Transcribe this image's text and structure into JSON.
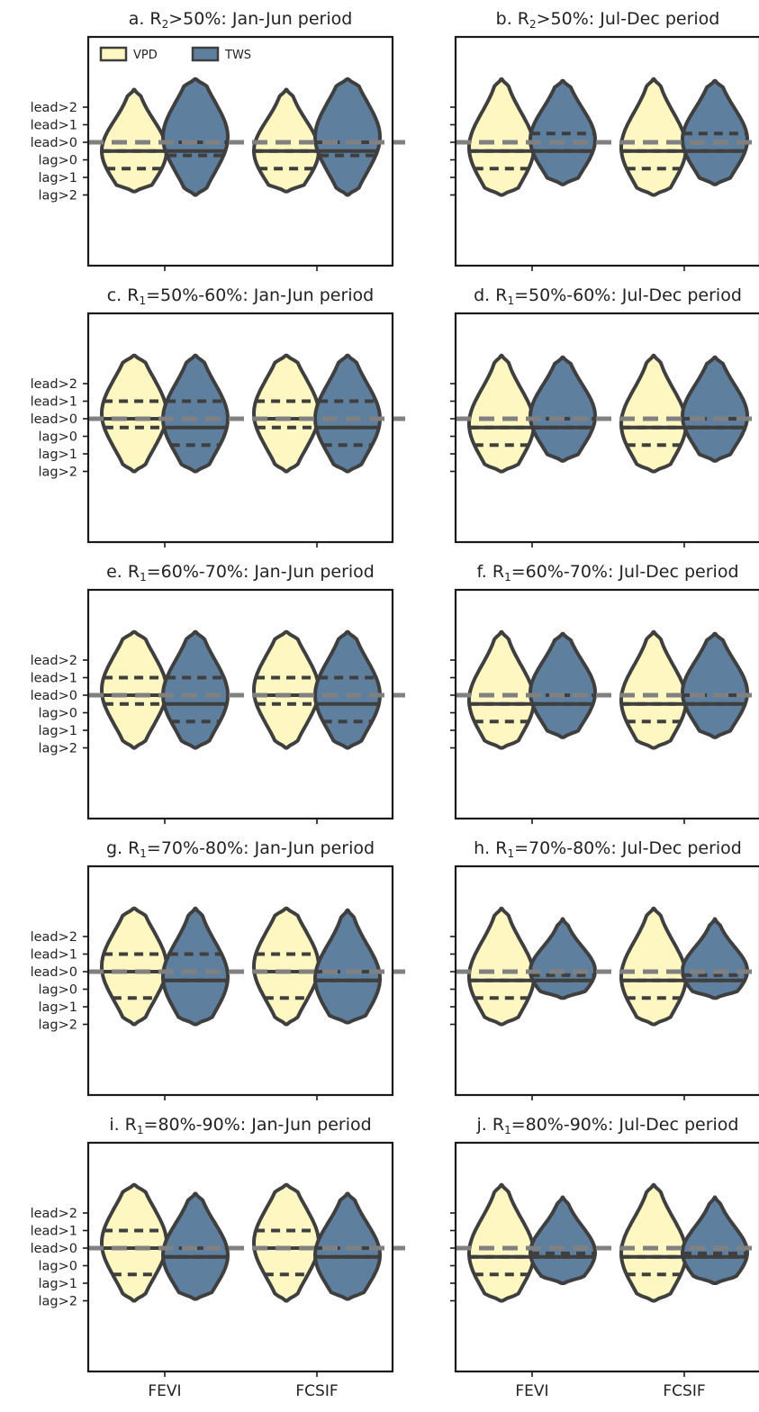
{
  "colors": {
    "VPD": "#fff7c2",
    "TWS": "#5f7f9f",
    "edge": "#3f3f3f",
    "refline": "#808080"
  },
  "chart_data": {
    "type": "violin",
    "y_categories": [
      "lead>2",
      "lead>1",
      "lead>0",
      "lag>0",
      "lag>1",
      "lag>2"
    ],
    "x_categories": [
      "FEVI",
      "FCSIF"
    ],
    "legend": {
      "entries": [
        "VPD",
        "TWS"
      ],
      "placement": "top-left of panel a"
    },
    "reference_line": "lead>0",
    "panels": [
      {
        "title_pre": "a. R",
        "title_sub": "2",
        "title_post": ">50%: Jan-Jun period",
        "violins": [
          {
            "category": "FEVI",
            "series": "VPD",
            "range": [
              -2.8,
              3.0
            ],
            "median": -0.5,
            "quartiles": [
              -1.5,
              -0.5
            ],
            "skew": -0.6
          },
          {
            "category": "FEVI",
            "series": "TWS",
            "range": [
              -3.0,
              3.6
            ],
            "median": -0.5,
            "quartiles": [
              -0.75,
              0.0
            ],
            "skew": 0.0
          },
          {
            "category": "FCSIF",
            "series": "VPD",
            "range": [
              -2.8,
              3.0
            ],
            "median": -0.5,
            "quartiles": [
              -1.5,
              -0.5
            ],
            "skew": -0.6
          },
          {
            "category": "FCSIF",
            "series": "TWS",
            "range": [
              -3.0,
              3.6
            ],
            "median": -0.5,
            "quartiles": [
              -0.75,
              0.0
            ],
            "skew": 0.0
          }
        ]
      },
      {
        "title_pre": "b. R",
        "title_sub": "2",
        "title_post": ">50%: Jul-Dec period",
        "violins": [
          {
            "category": "FEVI",
            "series": "VPD",
            "range": [
              -3.0,
              3.6
            ],
            "median": -0.5,
            "quartiles": [
              -1.5,
              -0.5
            ],
            "skew": -0.6
          },
          {
            "category": "FEVI",
            "series": "TWS",
            "range": [
              -2.4,
              3.5
            ],
            "median": -0.5,
            "quartiles": [
              -0.5,
              0.5
            ],
            "skew": -0.4
          },
          {
            "category": "FCSIF",
            "series": "VPD",
            "range": [
              -3.0,
              3.6
            ],
            "median": -0.5,
            "quartiles": [
              -1.5,
              -0.5
            ],
            "skew": -0.6
          },
          {
            "category": "FCSIF",
            "series": "TWS",
            "range": [
              -2.4,
              3.5
            ],
            "median": -0.5,
            "quartiles": [
              -0.5,
              0.5
            ],
            "skew": -0.4
          }
        ]
      },
      {
        "title_pre": "c. R",
        "title_sub": "1",
        "title_post": "=50%-60%: Jan-Jun period",
        "violins": [
          {
            "category": "FEVI",
            "series": "VPD",
            "range": [
              -3.0,
              3.6
            ],
            "median": 0.0,
            "quartiles": [
              -0.5,
              1.0
            ],
            "skew": 0.0
          },
          {
            "category": "FEVI",
            "series": "TWS",
            "range": [
              -3.0,
              3.6
            ],
            "median": -0.5,
            "quartiles": [
              -1.5,
              1.0
            ],
            "skew": -0.3
          },
          {
            "category": "FCSIF",
            "series": "VPD",
            "range": [
              -3.0,
              3.6
            ],
            "median": 0.0,
            "quartiles": [
              -0.5,
              1.0
            ],
            "skew": 0.0
          },
          {
            "category": "FCSIF",
            "series": "TWS",
            "range": [
              -3.0,
              3.6
            ],
            "median": -0.5,
            "quartiles": [
              -1.5,
              1.0
            ],
            "skew": -0.3
          }
        ]
      },
      {
        "title_pre": "d. R",
        "title_sub": "1",
        "title_post": "=50%-60%: Jul-Dec period",
        "violins": [
          {
            "category": "FEVI",
            "series": "VPD",
            "range": [
              -3.0,
              3.6
            ],
            "median": -0.5,
            "quartiles": [
              -1.5,
              -0.5
            ],
            "skew": -0.6
          },
          {
            "category": "FEVI",
            "series": "TWS",
            "range": [
              -2.4,
              3.5
            ],
            "median": -0.5,
            "quartiles": [
              -0.5,
              0.0
            ],
            "skew": -0.4
          },
          {
            "category": "FCSIF",
            "series": "VPD",
            "range": [
              -3.0,
              3.6
            ],
            "median": -0.5,
            "quartiles": [
              -1.5,
              -0.5
            ],
            "skew": -0.6
          },
          {
            "category": "FCSIF",
            "series": "TWS",
            "range": [
              -2.4,
              3.5
            ],
            "median": -0.5,
            "quartiles": [
              -0.5,
              0.0
            ],
            "skew": -0.4
          }
        ]
      },
      {
        "title_pre": "e. R",
        "title_sub": "1",
        "title_post": "=60%-70%: Jan-Jun period",
        "violins": [
          {
            "category": "FEVI",
            "series": "VPD",
            "range": [
              -3.0,
              3.6
            ],
            "median": 0.0,
            "quartiles": [
              -0.5,
              1.0
            ],
            "skew": 0.0
          },
          {
            "category": "FEVI",
            "series": "TWS",
            "range": [
              -3.0,
              3.6
            ],
            "median": -0.5,
            "quartiles": [
              -1.5,
              1.0
            ],
            "skew": -0.3
          },
          {
            "category": "FCSIF",
            "series": "VPD",
            "range": [
              -3.0,
              3.6
            ],
            "median": 0.0,
            "quartiles": [
              -0.5,
              1.0
            ],
            "skew": 0.0
          },
          {
            "category": "FCSIF",
            "series": "TWS",
            "range": [
              -3.0,
              3.6
            ],
            "median": -0.5,
            "quartiles": [
              -1.5,
              1.0
            ],
            "skew": -0.3
          }
        ]
      },
      {
        "title_pre": "f. R",
        "title_sub": "1",
        "title_post": "=60%-70%: Jul-Dec period",
        "violins": [
          {
            "category": "FEVI",
            "series": "VPD",
            "range": [
              -3.0,
              3.6
            ],
            "median": -0.5,
            "quartiles": [
              -1.5,
              -0.5
            ],
            "skew": -0.6
          },
          {
            "category": "FEVI",
            "series": "TWS",
            "range": [
              -2.4,
              3.5
            ],
            "median": -0.5,
            "quartiles": [
              -0.5,
              0.0
            ],
            "skew": -0.4
          },
          {
            "category": "FCSIF",
            "series": "VPD",
            "range": [
              -3.0,
              3.6
            ],
            "median": -0.5,
            "quartiles": [
              -1.5,
              -0.5
            ],
            "skew": -0.6
          },
          {
            "category": "FCSIF",
            "series": "TWS",
            "range": [
              -2.4,
              3.5
            ],
            "median": -0.5,
            "quartiles": [
              -0.5,
              0.0
            ],
            "skew": -0.4
          }
        ]
      },
      {
        "title_pre": "g. R",
        "title_sub": "1",
        "title_post": "=70%-80%: Jan-Jun period",
        "violins": [
          {
            "category": "FEVI",
            "series": "VPD",
            "range": [
              -3.0,
              3.6
            ],
            "median": 0.0,
            "quartiles": [
              -1.5,
              1.0
            ],
            "skew": 0.0
          },
          {
            "category": "FEVI",
            "series": "TWS",
            "range": [
              -3.0,
              3.6
            ],
            "median": -0.5,
            "quartiles": [
              -0.5,
              1.0
            ],
            "skew": -0.6
          },
          {
            "category": "FCSIF",
            "series": "VPD",
            "range": [
              -3.0,
              3.6
            ],
            "median": 0.0,
            "quartiles": [
              -1.5,
              1.0
            ],
            "skew": 0.0
          },
          {
            "category": "FCSIF",
            "series": "TWS",
            "range": [
              -2.9,
              3.5
            ],
            "median": -0.5,
            "quartiles": [
              -0.5,
              0.0
            ],
            "skew": -0.7
          }
        ]
      },
      {
        "title_pre": "h. R",
        "title_sub": "1",
        "title_post": "=70%-80%: Jul-Dec period",
        "violins": [
          {
            "category": "FEVI",
            "series": "VPD",
            "range": [
              -3.0,
              3.6
            ],
            "median": -0.5,
            "quartiles": [
              -1.5,
              -0.5
            ],
            "skew": -0.6
          },
          {
            "category": "FEVI",
            "series": "TWS",
            "range": [
              -1.5,
              3.0
            ],
            "median": -0.5,
            "quartiles": [
              -0.5,
              -0.2
            ],
            "skew": -0.7
          },
          {
            "category": "FCSIF",
            "series": "VPD",
            "range": [
              -3.0,
              3.6
            ],
            "median": -0.5,
            "quartiles": [
              -1.5,
              -0.5
            ],
            "skew": -0.6
          },
          {
            "category": "FCSIF",
            "series": "TWS",
            "range": [
              -1.5,
              3.0
            ],
            "median": -0.5,
            "quartiles": [
              -0.5,
              -0.2
            ],
            "skew": -0.7
          }
        ]
      },
      {
        "title_pre": "i. R",
        "title_sub": "1",
        "title_post": "=80%-90%: Jan-Jun period",
        "violins": [
          {
            "category": "FEVI",
            "series": "VPD",
            "range": [
              -3.0,
              3.6
            ],
            "median": 0.0,
            "quartiles": [
              -1.5,
              1.0
            ],
            "skew": 0.0
          },
          {
            "category": "FEVI",
            "series": "TWS",
            "range": [
              -2.9,
              3.1
            ],
            "median": -0.5,
            "quartiles": [
              -0.5,
              0.0
            ],
            "skew": -0.5
          },
          {
            "category": "FCSIF",
            "series": "VPD",
            "range": [
              -3.0,
              3.6
            ],
            "median": 0.0,
            "quartiles": [
              -1.5,
              1.0
            ],
            "skew": 0.0
          },
          {
            "category": "FCSIF",
            "series": "TWS",
            "range": [
              -2.9,
              3.1
            ],
            "median": -0.5,
            "quartiles": [
              -0.5,
              0.0
            ],
            "skew": -0.5
          }
        ]
      },
      {
        "title_pre": "j. R",
        "title_sub": "1",
        "title_post": "=80%-90%: Jul-Dec period",
        "violins": [
          {
            "category": "FEVI",
            "series": "VPD",
            "range": [
              -3.0,
              3.6
            ],
            "median": -0.5,
            "quartiles": [
              -1.5,
              -0.5
            ],
            "skew": -0.6
          },
          {
            "category": "FEVI",
            "series": "TWS",
            "range": [
              -2.0,
              2.9
            ],
            "median": -0.5,
            "quartiles": [
              -0.5,
              -0.3
            ],
            "skew": -0.7
          },
          {
            "category": "FCSIF",
            "series": "VPD",
            "range": [
              -3.0,
              3.6
            ],
            "median": -0.5,
            "quartiles": [
              -1.5,
              -0.5
            ],
            "skew": -0.6
          },
          {
            "category": "FCSIF",
            "series": "TWS",
            "range": [
              -2.0,
              2.9
            ],
            "median": -0.5,
            "quartiles": [
              -0.5,
              -0.3
            ],
            "skew": -0.7
          }
        ]
      }
    ]
  }
}
